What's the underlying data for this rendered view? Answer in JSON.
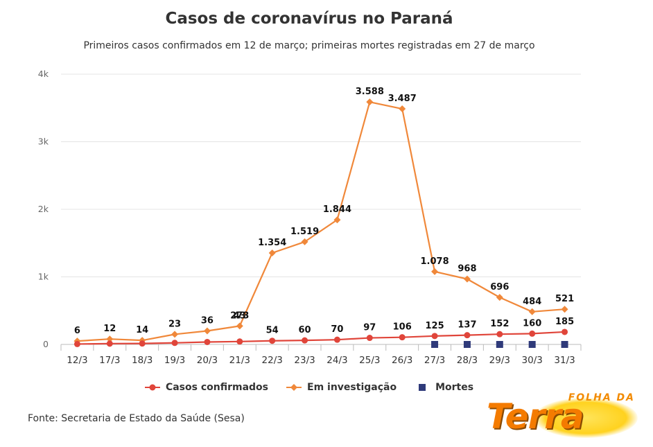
{
  "chart_data": {
    "type": "line",
    "title": "Casos de coronavírus no Paraná",
    "subtitle": "Primeiros casos confirmados em 12 de março; primeiras mortes registradas em 27 de março",
    "categories": [
      "12/3",
      "17/3",
      "18/3",
      "19/3",
      "20/3",
      "21/3",
      "22/3",
      "23/3",
      "24/3",
      "25/3",
      "26/3",
      "27/3",
      "28/3",
      "29/3",
      "30/3",
      "31/3"
    ],
    "y_ticks": [
      "0",
      "1k",
      "2k",
      "3k",
      "4k"
    ],
    "ylim": [
      0,
      4000
    ],
    "grid": true,
    "legend_position": "bottom",
    "series": [
      {
        "name": "Casos confirmados",
        "color": "#e0453a",
        "marker": "circle",
        "values": [
          6,
          12,
          14,
          23,
          36,
          43,
          54,
          60,
          70,
          97,
          106,
          125,
          137,
          152,
          160,
          185
        ],
        "labels": [
          "6",
          "12",
          "14",
          "23",
          "36",
          "43",
          "54",
          "60",
          "70",
          "97",
          "106",
          "125",
          "137",
          "152",
          "160",
          "185"
        ]
      },
      {
        "name": "Em investigação",
        "color": "#f0883a",
        "marker": "diamond",
        "values": [
          50,
          80,
          60,
          150,
          200,
          273,
          1354,
          1519,
          1844,
          3588,
          3487,
          1078,
          968,
          696,
          484,
          521
        ],
        "labels": [
          "",
          "",
          "",
          "",
          "",
          "273",
          "1.354",
          "1.519",
          "1.844",
          "3.588",
          "3.487",
          "1.078",
          "968",
          "696",
          "484",
          "521"
        ]
      },
      {
        "name": "Mortes",
        "color": "#2f3a7a",
        "marker": "square",
        "values": [
          null,
          null,
          null,
          null,
          null,
          null,
          null,
          null,
          null,
          null,
          null,
          1,
          2,
          3,
          3,
          4
        ],
        "labels": []
      }
    ]
  },
  "source": "Fonte: Secretaria de Estado da Saúde (Sesa)",
  "logo": {
    "top_text": "FOLHA DA",
    "main_text": "Terra"
  }
}
